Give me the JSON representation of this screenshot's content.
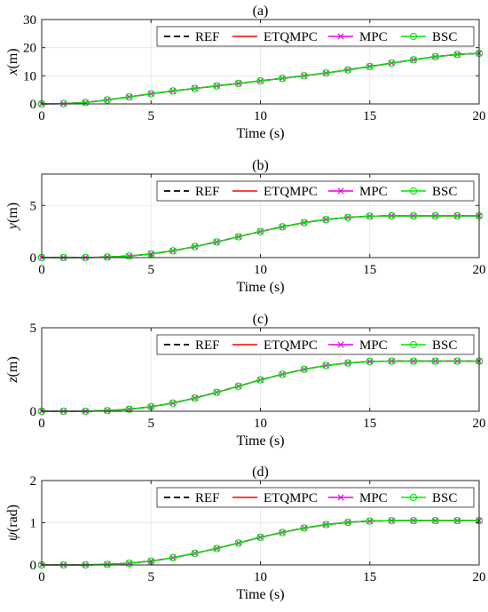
{
  "colors": {
    "REF": "#000000",
    "ETQMPC": "#ff0000",
    "MPC": "#e600e6",
    "BSC": "#00e600",
    "grid": "#e6e6e6",
    "axis": "#262626"
  },
  "chart_data": [
    {
      "type": "line",
      "title": "(a)",
      "xlabel": "Time (s)",
      "ylabel_italic": "x",
      "ylabel_rest": "(m)",
      "xlim": [
        0,
        20
      ],
      "ylim": [
        0,
        30
      ],
      "xticks": [
        0,
        5,
        10,
        15,
        20
      ],
      "yticks": [
        0,
        10,
        20,
        30
      ],
      "grid": true,
      "legend_location": "top-right",
      "x": [
        0,
        1,
        2,
        3,
        4,
        5,
        6,
        7,
        8,
        9,
        10,
        11,
        12,
        13,
        14,
        15,
        16,
        17,
        18,
        19,
        20
      ],
      "series": [
        {
          "name": "REF",
          "style": "dashed",
          "marker": "none",
          "values": [
            0,
            0.1,
            0.5,
            1.4,
            2.5,
            3.6,
            4.6,
            5.5,
            6.4,
            7.3,
            8.2,
            9.1,
            10.0,
            11.0,
            12.1,
            13.3,
            14.5,
            15.7,
            16.8,
            17.6,
            18.0
          ]
        },
        {
          "name": "ETQMPC",
          "style": "solid",
          "marker": "none",
          "values": [
            0,
            0.1,
            0.5,
            1.4,
            2.5,
            3.6,
            4.6,
            5.5,
            6.4,
            7.3,
            8.2,
            9.1,
            10.0,
            11.0,
            12.1,
            13.3,
            14.5,
            15.7,
            16.8,
            17.6,
            18.0
          ]
        },
        {
          "name": "MPC",
          "style": "solid",
          "marker": "x",
          "values": [
            0,
            0.1,
            0.5,
            1.4,
            2.5,
            3.6,
            4.6,
            5.5,
            6.4,
            7.3,
            8.2,
            9.1,
            10.0,
            11.0,
            12.1,
            13.3,
            14.5,
            15.7,
            16.8,
            17.6,
            18.0
          ]
        },
        {
          "name": "BSC",
          "style": "solid",
          "marker": "o",
          "values": [
            0,
            0.1,
            0.5,
            1.4,
            2.5,
            3.6,
            4.6,
            5.5,
            6.4,
            7.3,
            8.2,
            9.1,
            10.0,
            11.0,
            12.1,
            13.3,
            14.5,
            15.7,
            16.8,
            17.6,
            18.0
          ]
        }
      ]
    },
    {
      "type": "line",
      "title": "(b)",
      "xlabel": "Time (s)",
      "ylabel_italic": "y",
      "ylabel_rest": "(m)",
      "xlim": [
        0,
        20
      ],
      "ylim": [
        0,
        8
      ],
      "xticks": [
        0,
        5,
        10,
        15,
        20
      ],
      "yticks": [
        0,
        5
      ],
      "grid": true,
      "legend_location": "top-right",
      "x": [
        0,
        1,
        2,
        3,
        4,
        5,
        6,
        7,
        8,
        9,
        10,
        11,
        12,
        13,
        14,
        15,
        16,
        17,
        18,
        19,
        20
      ],
      "series": [
        {
          "name": "REF",
          "style": "dashed",
          "marker": "none",
          "values": [
            0,
            0,
            0,
            0.05,
            0.15,
            0.35,
            0.65,
            1.05,
            1.5,
            2.0,
            2.5,
            2.95,
            3.35,
            3.65,
            3.85,
            3.97,
            4.0,
            4.0,
            4.0,
            4.0,
            4.0
          ]
        },
        {
          "name": "ETQMPC",
          "style": "solid",
          "marker": "none",
          "values": [
            0,
            0,
            0,
            0.05,
            0.15,
            0.35,
            0.65,
            1.05,
            1.5,
            2.0,
            2.5,
            2.95,
            3.35,
            3.65,
            3.85,
            3.97,
            4.0,
            4.0,
            4.0,
            4.0,
            4.0
          ]
        },
        {
          "name": "MPC",
          "style": "solid",
          "marker": "x",
          "values": [
            0,
            0,
            0,
            0.05,
            0.15,
            0.35,
            0.65,
            1.05,
            1.5,
            2.0,
            2.5,
            2.95,
            3.35,
            3.65,
            3.85,
            3.97,
            4.0,
            4.0,
            4.0,
            4.0,
            4.0
          ]
        },
        {
          "name": "BSC",
          "style": "solid",
          "marker": "o",
          "values": [
            0,
            0,
            0,
            0.05,
            0.15,
            0.35,
            0.65,
            1.05,
            1.5,
            2.0,
            2.5,
            2.95,
            3.35,
            3.65,
            3.85,
            3.97,
            4.0,
            4.0,
            4.0,
            4.0,
            4.0
          ]
        }
      ]
    },
    {
      "type": "line",
      "title": "(c)",
      "xlabel": "Time (s)",
      "ylabel_italic": "z",
      "ylabel_rest": "(m)",
      "xlim": [
        0,
        20
      ],
      "ylim": [
        0,
        5
      ],
      "xticks": [
        0,
        5,
        10,
        15,
        20
      ],
      "yticks": [
        0,
        5
      ],
      "grid": true,
      "legend_location": "top-right",
      "x": [
        0,
        1,
        2,
        3,
        4,
        5,
        6,
        7,
        8,
        9,
        10,
        11,
        12,
        13,
        14,
        15,
        16,
        17,
        18,
        19,
        20
      ],
      "series": [
        {
          "name": "REF",
          "style": "dashed",
          "marker": "none",
          "values": [
            0,
            0,
            0,
            0.04,
            0.12,
            0.27,
            0.49,
            0.79,
            1.13,
            1.5,
            1.88,
            2.21,
            2.51,
            2.74,
            2.89,
            2.98,
            3.0,
            3.0,
            3.0,
            3.0,
            3.0
          ]
        },
        {
          "name": "ETQMPC",
          "style": "solid",
          "marker": "none",
          "values": [
            0,
            0,
            0,
            0.04,
            0.12,
            0.27,
            0.49,
            0.79,
            1.13,
            1.5,
            1.88,
            2.21,
            2.51,
            2.74,
            2.89,
            2.98,
            3.0,
            3.0,
            3.0,
            3.0,
            3.0
          ]
        },
        {
          "name": "MPC",
          "style": "solid",
          "marker": "x",
          "values": [
            0,
            0,
            0,
            0.04,
            0.12,
            0.27,
            0.49,
            0.79,
            1.13,
            1.5,
            1.88,
            2.21,
            2.51,
            2.74,
            2.89,
            2.98,
            3.0,
            3.0,
            3.0,
            3.0,
            3.0
          ]
        },
        {
          "name": "BSC",
          "style": "solid",
          "marker": "o",
          "values": [
            0,
            0,
            0,
            0.04,
            0.12,
            0.27,
            0.49,
            0.79,
            1.13,
            1.5,
            1.88,
            2.21,
            2.51,
            2.74,
            2.89,
            2.98,
            3.0,
            3.0,
            3.0,
            3.0,
            3.0
          ]
        }
      ]
    },
    {
      "type": "line",
      "title": "(d)",
      "xlabel": "Time (s)",
      "ylabel_italic": "ψ",
      "ylabel_rest": "(rad)",
      "xlim": [
        0,
        20
      ],
      "ylim": [
        0,
        2
      ],
      "xticks": [
        0,
        5,
        10,
        15,
        20
      ],
      "yticks": [
        0,
        1,
        2
      ],
      "grid": true,
      "legend_location": "top-right",
      "x": [
        0,
        1,
        2,
        3,
        4,
        5,
        6,
        7,
        8,
        9,
        10,
        11,
        12,
        13,
        14,
        15,
        16,
        17,
        18,
        19,
        20
      ],
      "series": [
        {
          "name": "REF",
          "style": "dashed",
          "marker": "none",
          "values": [
            0,
            0,
            0,
            0.013,
            0.04,
            0.09,
            0.17,
            0.275,
            0.39,
            0.52,
            0.655,
            0.77,
            0.875,
            0.955,
            1.01,
            1.04,
            1.05,
            1.05,
            1.05,
            1.05,
            1.05
          ]
        },
        {
          "name": "ETQMPC",
          "style": "solid",
          "marker": "none",
          "values": [
            0,
            0,
            0,
            0.013,
            0.04,
            0.09,
            0.17,
            0.275,
            0.39,
            0.52,
            0.655,
            0.77,
            0.875,
            0.955,
            1.01,
            1.04,
            1.05,
            1.05,
            1.05,
            1.05,
            1.05
          ]
        },
        {
          "name": "MPC",
          "style": "solid",
          "marker": "x",
          "values": [
            0,
            0,
            0,
            0.013,
            0.04,
            0.09,
            0.17,
            0.275,
            0.39,
            0.52,
            0.655,
            0.77,
            0.875,
            0.955,
            1.01,
            1.04,
            1.05,
            1.05,
            1.05,
            1.05,
            1.05
          ]
        },
        {
          "name": "BSC",
          "style": "solid",
          "marker": "o",
          "values": [
            0,
            0,
            0,
            0.013,
            0.04,
            0.09,
            0.17,
            0.275,
            0.39,
            0.52,
            0.655,
            0.77,
            0.875,
            0.955,
            1.01,
            1.04,
            1.05,
            1.05,
            1.05,
            1.05,
            1.05
          ]
        }
      ]
    }
  ]
}
